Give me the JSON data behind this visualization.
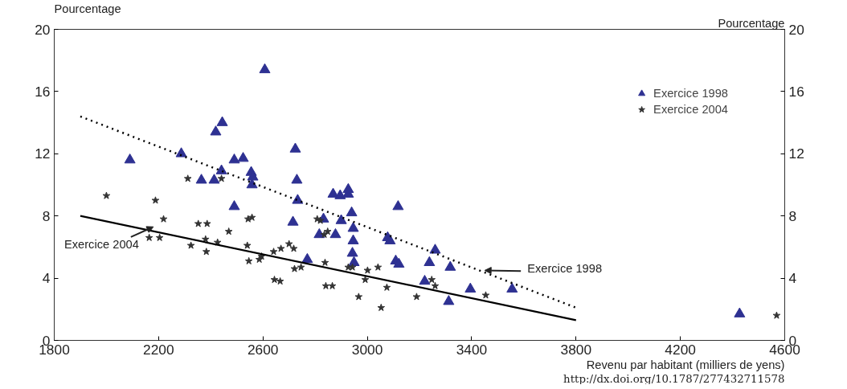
{
  "chart_data": {
    "type": "scatter",
    "xlabel": "Revenu par habitant (milliers de yens)",
    "ylabel": "Pourcentage",
    "y2label": "Pourcentage",
    "xlim": [
      1800,
      4600
    ],
    "xticks": [
      1800,
      2200,
      2600,
      3000,
      3400,
      3800,
      4200,
      4600
    ],
    "ylim": [
      0,
      20
    ],
    "yticks": [
      0,
      4,
      8,
      12,
      16,
      20
    ],
    "y2lim": [
      0,
      20
    ],
    "y2ticks": [
      0,
      4,
      8,
      12,
      16,
      20
    ],
    "grid": false,
    "legend": "top right",
    "series": [
      {
        "name": "Exercice 1998",
        "marker": "triangle",
        "color": "#2e3192",
        "x": [
          2090,
          2287,
          2364,
          2413,
          2419,
          2444,
          2441,
          2490,
          2524,
          2490,
          2555,
          2561,
          2558,
          2607,
          2724,
          2730,
          2733,
          2715,
          2770,
          2816,
          2832,
          2869,
          2896,
          2927,
          2927,
          2940,
          2946,
          2946,
          2943,
          2949,
          2878,
          2900,
          3078,
          3087,
          3118,
          3109,
          3121,
          3220,
          3238,
          3260,
          3312,
          3318,
          3395,
          3555,
          4427
        ],
        "values": [
          11.6,
          12.0,
          10.3,
          10.3,
          13.4,
          14.0,
          10.9,
          11.6,
          11.7,
          8.6,
          10.8,
          10.5,
          10.0,
          17.4,
          12.3,
          10.3,
          9.0,
          7.6,
          5.2,
          6.8,
          7.8,
          9.4,
          9.3,
          9.4,
          9.7,
          8.2,
          7.2,
          6.4,
          5.6,
          5.0,
          6.8,
          7.7,
          6.6,
          6.4,
          8.6,
          5.1,
          4.9,
          3.8,
          5.0,
          5.8,
          2.5,
          4.7,
          3.3,
          3.3,
          1.7
        ]
      },
      {
        "name": "Exercice 2004",
        "marker": "star",
        "color": "#333333",
        "x": [
          2000,
          2188,
          2219,
          2164,
          2204,
          2312,
          2352,
          2386,
          2324,
          2380,
          2383,
          2426,
          2441,
          2469,
          2543,
          2558,
          2540,
          2546,
          2586,
          2595,
          2641,
          2669,
          2644,
          2666,
          2700,
          2718,
          2721,
          2746,
          2808,
          2820,
          2848,
          2835,
          2838,
          2841,
          2866,
          2927,
          2943,
          2967,
          3001,
          2992,
          3041,
          3053,
          3075,
          3189,
          3247,
          3260,
          3454,
          4569
        ],
        "values": [
          9.3,
          9.0,
          7.8,
          6.6,
          6.6,
          10.4,
          7.5,
          7.5,
          6.1,
          6.5,
          5.7,
          6.3,
          10.4,
          7.0,
          7.8,
          7.9,
          6.1,
          5.1,
          5.2,
          5.4,
          5.7,
          5.9,
          3.9,
          3.8,
          6.2,
          5.9,
          4.6,
          4.7,
          7.8,
          7.7,
          7.0,
          6.8,
          5.0,
          3.5,
          3.5,
          4.7,
          4.7,
          2.8,
          4.5,
          3.9,
          4.7,
          2.1,
          3.4,
          2.8,
          3.9,
          3.5,
          2.9,
          1.6
        ]
      },
      {
        "type": "line",
        "line_style": "dotted",
        "color": "#000000",
        "x": [
          1900,
          3800
        ],
        "values": [
          14.4,
          2.1
        ]
      },
      {
        "type": "line",
        "line_style": "solid",
        "color": "#000000",
        "x": [
          1900,
          3800
        ],
        "values": [
          8.0,
          1.3
        ]
      }
    ],
    "annotations": [
      {
        "text": "Exercice 2004",
        "x": 2180,
        "y": 7.3
      },
      {
        "text": "Exercice 1998",
        "x": 3450,
        "y": 4.5
      },
      "http://dx.doi.org/10.1787/277432711578"
    ]
  }
}
